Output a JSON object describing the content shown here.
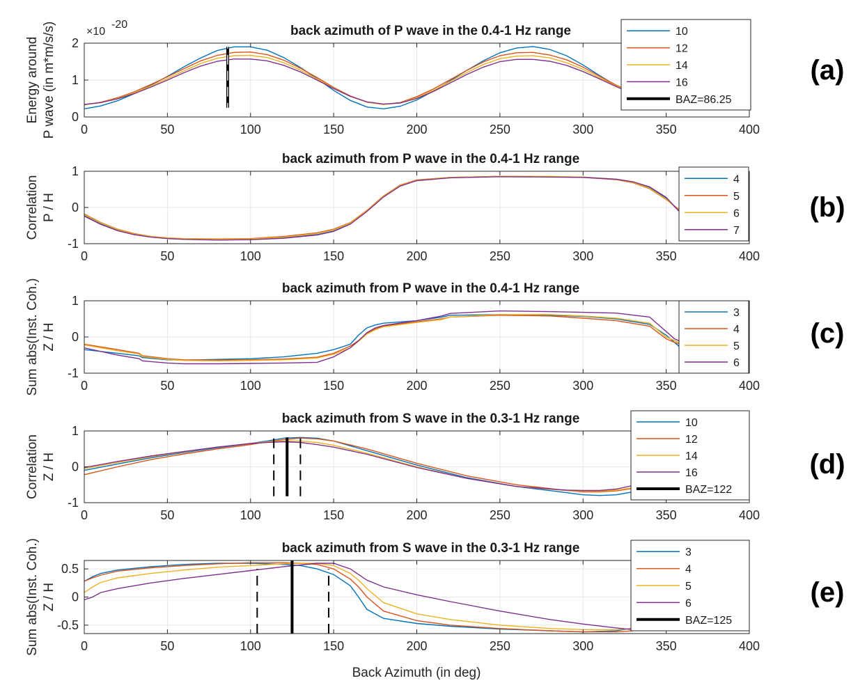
{
  "figure": {
    "xlabel": "Back Azimuth (in deg)",
    "exponent_label": "×10",
    "exponent_power": "-20"
  },
  "colors": {
    "blue": "#0072BD",
    "orange": "#D95319",
    "yellow": "#EDB120",
    "purple": "#7E2F8E",
    "black": "#000000",
    "grid": "#e6e6e6"
  },
  "chart_data": [
    {
      "type": "line",
      "tag": "(a)",
      "title": "back azimuth of P wave in the 0.4-1 Hz range",
      "ylabel_lines": [
        "Energy around",
        "P wave (in m*m/s/s)"
      ],
      "xlim": [
        0,
        400
      ],
      "ylim": [
        0,
        2
      ],
      "xticks": [
        "0",
        "50",
        "100",
        "150",
        "200",
        "250",
        "300",
        "350",
        "400"
      ],
      "yticks": [
        "0",
        "1",
        "2"
      ],
      "ytick_values": [
        0,
        1,
        2
      ],
      "x": [
        0,
        10,
        20,
        30,
        40,
        50,
        60,
        70,
        80,
        90,
        100,
        110,
        120,
        130,
        140,
        150,
        160,
        170,
        180,
        190,
        200,
        210,
        220,
        230,
        240,
        250,
        260,
        270,
        280,
        290,
        300,
        310,
        320,
        330
      ],
      "series": [
        {
          "name": "10",
          "color": "blue",
          "values": [
            0.22,
            0.3,
            0.44,
            0.63,
            0.86,
            1.1,
            1.36,
            1.6,
            1.8,
            1.9,
            1.9,
            1.81,
            1.61,
            1.34,
            1.04,
            0.72,
            0.45,
            0.27,
            0.22,
            0.29,
            0.46,
            0.7,
            0.98,
            1.26,
            1.52,
            1.74,
            1.87,
            1.91,
            1.83,
            1.66,
            1.41,
            1.12,
            0.85,
            0.63
          ]
        },
        {
          "name": "12",
          "color": "orange",
          "values": [
            0.33,
            0.4,
            0.52,
            0.68,
            0.88,
            1.09,
            1.31,
            1.52,
            1.67,
            1.75,
            1.76,
            1.69,
            1.54,
            1.32,
            1.07,
            0.8,
            0.57,
            0.4,
            0.34,
            0.39,
            0.55,
            0.76,
            1.01,
            1.26,
            1.49,
            1.66,
            1.74,
            1.75,
            1.68,
            1.55,
            1.35,
            1.1,
            0.86,
            0.66
          ]
        },
        {
          "name": "14",
          "color": "yellow",
          "values": [
            0.33,
            0.39,
            0.5,
            0.65,
            0.84,
            1.04,
            1.25,
            1.45,
            1.59,
            1.66,
            1.67,
            1.61,
            1.47,
            1.27,
            1.03,
            0.78,
            0.56,
            0.4,
            0.34,
            0.38,
            0.52,
            0.72,
            0.96,
            1.2,
            1.42,
            1.58,
            1.65,
            1.66,
            1.6,
            1.47,
            1.29,
            1.06,
            0.84,
            0.65
          ]
        },
        {
          "name": "16",
          "color": "purple",
          "values": [
            0.34,
            0.39,
            0.49,
            0.63,
            0.81,
            1.0,
            1.2,
            1.38,
            1.51,
            1.57,
            1.57,
            1.52,
            1.4,
            1.22,
            1.0,
            0.77,
            0.56,
            0.41,
            0.35,
            0.38,
            0.5,
            0.69,
            0.92,
            1.15,
            1.35,
            1.5,
            1.56,
            1.56,
            1.51,
            1.4,
            1.23,
            1.03,
            0.82,
            0.64
          ]
        }
      ],
      "markers": [
        {
          "name": "BAZ=86.25",
          "x": 86.25,
          "style": "solid",
          "y_from": 0.25,
          "y_to": 1.9
        },
        {
          "x": 86.25,
          "style": "dashed",
          "y_from": 0.25,
          "y_to": 1.9
        }
      ],
      "legend": [
        "10",
        "12",
        "14",
        "16",
        "BAZ=86.25"
      ],
      "legend_colors": [
        "blue",
        "orange",
        "yellow",
        "purple",
        "black"
      ]
    },
    {
      "type": "line",
      "tag": "(b)",
      "title": "back azimuth from P wave in the 0.4-1 Hz range",
      "ylabel_lines": [
        "Correlation",
        "P / H"
      ],
      "xlim": [
        0,
        400
      ],
      "ylim": [
        -1,
        1
      ],
      "xticks": [
        "0",
        "50",
        "100",
        "150",
        "200",
        "250",
        "300",
        "350",
        "400"
      ],
      "yticks": [
        "-1",
        "0",
        "1"
      ],
      "ytick_values": [
        -1,
        0,
        1
      ],
      "x": [
        0,
        10,
        20,
        30,
        40,
        50,
        60,
        80,
        100,
        120,
        140,
        150,
        160,
        170,
        180,
        190,
        200,
        220,
        250,
        280,
        300,
        320,
        330,
        340,
        350,
        360
      ],
      "series": [
        {
          "name": "4",
          "color": "blue",
          "values": [
            -0.22,
            -0.45,
            -0.62,
            -0.74,
            -0.81,
            -0.85,
            -0.87,
            -0.89,
            -0.88,
            -0.84,
            -0.75,
            -0.65,
            -0.45,
            -0.1,
            0.3,
            0.6,
            0.75,
            0.83,
            0.86,
            0.85,
            0.84,
            0.78,
            0.7,
            0.55,
            0.25,
            -0.2
          ]
        },
        {
          "name": "5",
          "color": "orange",
          "values": [
            -0.18,
            -0.42,
            -0.6,
            -0.72,
            -0.8,
            -0.84,
            -0.86,
            -0.87,
            -0.86,
            -0.8,
            -0.7,
            -0.6,
            -0.42,
            -0.08,
            0.32,
            0.62,
            0.76,
            0.83,
            0.86,
            0.85,
            0.83,
            0.77,
            0.68,
            0.52,
            0.22,
            -0.14
          ]
        },
        {
          "name": "6",
          "color": "yellow",
          "values": [
            -0.2,
            -0.43,
            -0.61,
            -0.73,
            -0.8,
            -0.84,
            -0.86,
            -0.88,
            -0.87,
            -0.82,
            -0.72,
            -0.62,
            -0.43,
            -0.09,
            0.31,
            0.61,
            0.75,
            0.83,
            0.86,
            0.86,
            0.84,
            0.78,
            0.69,
            0.53,
            0.23,
            -0.17
          ]
        },
        {
          "name": "7",
          "color": "purple",
          "values": [
            -0.24,
            -0.47,
            -0.64,
            -0.75,
            -0.82,
            -0.86,
            -0.88,
            -0.9,
            -0.89,
            -0.85,
            -0.76,
            -0.66,
            -0.46,
            -0.11,
            0.29,
            0.59,
            0.74,
            0.82,
            0.85,
            0.84,
            0.83,
            0.78,
            0.71,
            0.57,
            0.28,
            -0.22
          ]
        }
      ],
      "markers": [],
      "legend": [
        "4",
        "5",
        "6",
        "7"
      ],
      "legend_colors": [
        "blue",
        "orange",
        "yellow",
        "purple"
      ]
    },
    {
      "type": "line",
      "tag": "(c)",
      "title": "back azimuth from P wave in the 0.4-1 Hz range",
      "ylabel_lines": [
        "Sum abs(Inst. Coh.)",
        "Z / H"
      ],
      "xlim": [
        0,
        400
      ],
      "ylim": [
        -1,
        1
      ],
      "xticks": [
        "0",
        "50",
        "100",
        "150",
        "200",
        "250",
        "300",
        "350",
        "400"
      ],
      "yticks": [
        "-1",
        "0",
        "1"
      ],
      "ytick_values": [
        -1,
        0,
        1
      ],
      "x": [
        0,
        20,
        33,
        35,
        50,
        60,
        80,
        100,
        120,
        140,
        150,
        160,
        165,
        170,
        175,
        180,
        200,
        215,
        220,
        250,
        280,
        300,
        320,
        340,
        350,
        355,
        360
      ],
      "series": [
        {
          "name": "3",
          "color": "blue",
          "values": [
            -0.35,
            -0.45,
            -0.52,
            -0.57,
            -0.63,
            -0.64,
            -0.62,
            -0.6,
            -0.55,
            -0.45,
            -0.35,
            -0.2,
            0.05,
            0.25,
            0.33,
            0.38,
            0.45,
            0.55,
            0.6,
            0.62,
            0.6,
            0.57,
            0.5,
            0.35,
            0.05,
            -0.15,
            -0.35
          ]
        },
        {
          "name": "4",
          "color": "orange",
          "values": [
            -0.2,
            -0.35,
            -0.45,
            -0.52,
            -0.6,
            -0.63,
            -0.64,
            -0.63,
            -0.61,
            -0.56,
            -0.45,
            -0.25,
            -0.1,
            0.1,
            0.22,
            0.3,
            0.42,
            0.5,
            0.55,
            0.6,
            0.58,
            0.52,
            0.45,
            0.3,
            -0.05,
            -0.15,
            -0.22
          ]
        },
        {
          "name": "5",
          "color": "yellow",
          "values": [
            -0.22,
            -0.38,
            -0.47,
            -0.54,
            -0.62,
            -0.65,
            -0.66,
            -0.65,
            -0.63,
            -0.58,
            -0.48,
            -0.3,
            -0.12,
            0.08,
            0.2,
            0.28,
            0.4,
            0.48,
            0.55,
            0.62,
            0.62,
            0.58,
            0.52,
            0.38,
            0.0,
            -0.1,
            -0.2
          ]
        },
        {
          "name": "6",
          "color": "purple",
          "values": [
            -0.3,
            -0.5,
            -0.6,
            -0.66,
            -0.72,
            -0.74,
            -0.74,
            -0.73,
            -0.72,
            -0.7,
            -0.55,
            -0.3,
            -0.1,
            0.12,
            0.25,
            0.32,
            0.45,
            0.58,
            0.65,
            0.72,
            0.7,
            0.68,
            0.66,
            0.55,
            0.15,
            -0.05,
            -0.15
          ]
        }
      ],
      "markers": [],
      "legend": [
        "3",
        "4",
        "5",
        "6"
      ],
      "legend_colors": [
        "blue",
        "orange",
        "yellow",
        "purple"
      ]
    },
    {
      "type": "line",
      "tag": "(d)",
      "title": "back azimuth from S wave in the 0.3-1 Hz range",
      "ylabel_lines": [
        "Correlation",
        "Z / H"
      ],
      "xlim": [
        0,
        400
      ],
      "ylim": [
        -1,
        1
      ],
      "xticks": [
        "0",
        "50",
        "100",
        "150",
        "200",
        "250",
        "300",
        "350",
        "400"
      ],
      "yticks": [
        "-1",
        "0",
        "1"
      ],
      "ytick_values": [
        -1,
        0,
        1
      ],
      "x": [
        0,
        20,
        40,
        60,
        80,
        100,
        110,
        120,
        130,
        140,
        150,
        170,
        200,
        230,
        260,
        290,
        300,
        310,
        320,
        330,
        340
      ],
      "series": [
        {
          "name": "10",
          "color": "blue",
          "values": [
            -0.1,
            0.08,
            0.25,
            0.4,
            0.53,
            0.65,
            0.72,
            0.8,
            0.82,
            0.8,
            0.72,
            0.45,
            0.05,
            -0.3,
            -0.55,
            -0.72,
            -0.78,
            -0.8,
            -0.78,
            -0.7,
            -0.55
          ]
        },
        {
          "name": "12",
          "color": "orange",
          "values": [
            -0.22,
            0.0,
            0.2,
            0.36,
            0.5,
            0.62,
            0.7,
            0.76,
            0.8,
            0.78,
            0.72,
            0.5,
            0.1,
            -0.25,
            -0.5,
            -0.66,
            -0.7,
            -0.7,
            -0.67,
            -0.6,
            -0.48
          ]
        },
        {
          "name": "14",
          "color": "yellow",
          "values": [
            -0.05,
            0.12,
            0.28,
            0.42,
            0.55,
            0.65,
            0.7,
            0.72,
            0.72,
            0.68,
            0.6,
            0.38,
            0.0,
            -0.32,
            -0.55,
            -0.66,
            -0.68,
            -0.68,
            -0.65,
            -0.58,
            -0.45
          ]
        },
        {
          "name": "16",
          "color": "purple",
          "values": [
            -0.02,
            0.15,
            0.3,
            0.43,
            0.55,
            0.65,
            0.68,
            0.7,
            0.68,
            0.62,
            0.55,
            0.35,
            -0.02,
            -0.32,
            -0.55,
            -0.65,
            -0.66,
            -0.66,
            -0.62,
            -0.52,
            -0.4
          ]
        }
      ],
      "markers": [
        {
          "name": "BAZ=122",
          "x": 122,
          "style": "solid",
          "y_from": -0.82,
          "y_to": 0.82
        },
        {
          "x": 114,
          "style": "dashed",
          "y_from": -0.82,
          "y_to": 0.82
        },
        {
          "x": 130,
          "style": "dashed",
          "y_from": -0.82,
          "y_to": 0.82
        }
      ],
      "legend": [
        "10",
        "12",
        "14",
        "16",
        "BAZ=122"
      ],
      "legend_colors": [
        "blue",
        "orange",
        "yellow",
        "purple",
        "black"
      ]
    },
    {
      "type": "line",
      "tag": "(e)",
      "title": "back azimuth from S wave in the 0.3-1 Hz range",
      "ylabel_lines": [
        "Sum abs(Inst. Coh.)",
        "Z / H"
      ],
      "xlim": [
        0,
        400
      ],
      "ylim": [
        -0.65,
        0.65
      ],
      "xticks": [
        "0",
        "50",
        "100",
        "150",
        "200",
        "250",
        "300",
        "350",
        "400"
      ],
      "yticks": [
        "-0.5",
        "0",
        "0.5"
      ],
      "ytick_values": [
        -0.5,
        0,
        0.5
      ],
      "x": [
        0,
        5,
        10,
        20,
        40,
        60,
        80,
        100,
        120,
        130,
        140,
        150,
        160,
        165,
        170,
        180,
        200,
        220,
        250,
        280,
        300,
        320,
        330
      ],
      "series": [
        {
          "name": "3",
          "color": "blue",
          "values": [
            0.28,
            0.36,
            0.42,
            0.48,
            0.54,
            0.58,
            0.6,
            0.6,
            0.58,
            0.56,
            0.5,
            0.4,
            0.2,
            0.0,
            -0.22,
            -0.38,
            -0.47,
            -0.52,
            -0.57,
            -0.6,
            -0.62,
            -0.6,
            -0.55
          ]
        },
        {
          "name": "4",
          "color": "orange",
          "values": [
            0.28,
            0.34,
            0.39,
            0.46,
            0.52,
            0.56,
            0.59,
            0.61,
            0.61,
            0.6,
            0.58,
            0.5,
            0.32,
            0.18,
            0.0,
            -0.25,
            -0.42,
            -0.5,
            -0.56,
            -0.6,
            -0.62,
            -0.62,
            -0.6
          ]
        },
        {
          "name": "5",
          "color": "yellow",
          "values": [
            0.08,
            0.18,
            0.26,
            0.34,
            0.42,
            0.48,
            0.53,
            0.56,
            0.59,
            0.6,
            0.6,
            0.56,
            0.42,
            0.3,
            0.15,
            -0.1,
            -0.3,
            -0.4,
            -0.5,
            -0.56,
            -0.58,
            -0.58,
            -0.56
          ]
        },
        {
          "name": "6",
          "color": "purple",
          "values": [
            -0.05,
            0.0,
            0.08,
            0.15,
            0.25,
            0.33,
            0.4,
            0.47,
            0.54,
            0.57,
            0.6,
            0.6,
            0.5,
            0.4,
            0.3,
            0.18,
            0.04,
            -0.08,
            -0.25,
            -0.4,
            -0.48,
            -0.55,
            -0.58
          ]
        }
      ],
      "markers": [
        {
          "name": "BAZ=125",
          "x": 125,
          "style": "solid",
          "y_from": -0.65,
          "y_to": 0.65
        },
        {
          "x": 104,
          "style": "dashed",
          "y_from": -0.65,
          "y_to": 0.5
        },
        {
          "x": 147,
          "style": "dashed",
          "y_from": -0.65,
          "y_to": 0.5
        }
      ],
      "legend": [
        "3",
        "4",
        "5",
        "6",
        "BAZ=125"
      ],
      "legend_colors": [
        "blue",
        "orange",
        "yellow",
        "purple",
        "black"
      ]
    }
  ]
}
